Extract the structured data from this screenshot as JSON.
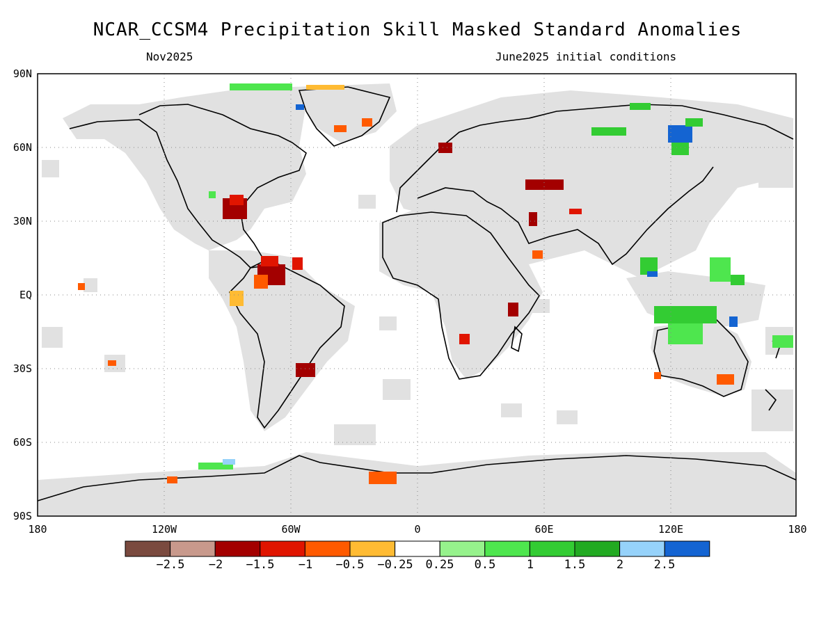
{
  "title": "NCAR_CCSM4 Precipitation Skill Masked Standard Anomalies",
  "subtitle_left": "Nov2025",
  "subtitle_right": "June2025 initial conditions",
  "lat_labels": [
    "90N",
    "60N",
    "30N",
    "EQ",
    "30S",
    "60S",
    "90S"
  ],
  "lon_labels": [
    "180",
    "120W",
    "60W",
    "0",
    "60E",
    "120E",
    "180"
  ],
  "colorbar": {
    "colors": [
      "#7a4a3f",
      "#c8998c",
      "#a30000",
      "#e01500",
      "#ff5a00",
      "#ffbb33",
      "#ffffff",
      "#96f28c",
      "#4ee64e",
      "#33cc33",
      "#22aa22",
      "#96d2fa",
      "#1464d2"
    ],
    "labels": [
      "−2.5",
      "−2",
      "−1.5",
      "−1",
      "−0.5",
      "−0.25",
      "0.25",
      "0.5",
      "1",
      "1.5",
      "2",
      "2.5"
    ]
  },
  "colors": {
    "masked": "#e1e1e1",
    "ocean": "#ffffff",
    "coast": "#000000",
    "grid": "#888888"
  }
}
